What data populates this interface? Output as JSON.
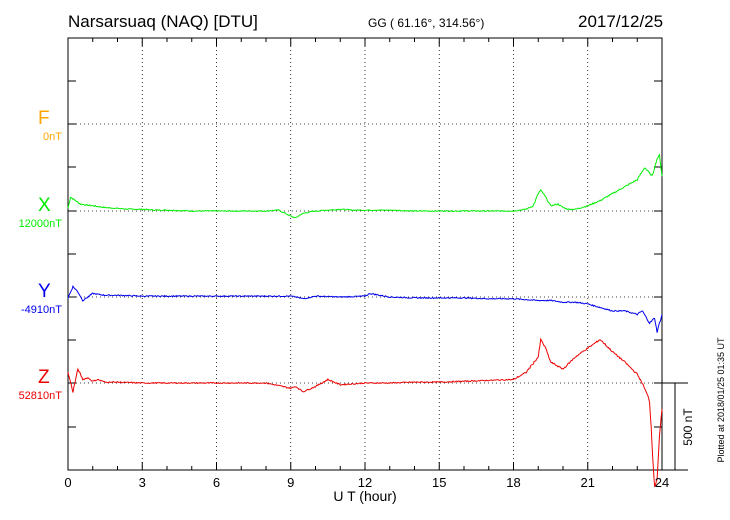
{
  "header": {
    "station": "Narsarsuaq (NAQ)  [DTU]",
    "coords": "GG ( 61.16°, 314.56°)",
    "date": "2017/12/25"
  },
  "footer": {
    "plotted": "Plotted at 2018/01/25 01:35 UT"
  },
  "chart_data": {
    "type": "line",
    "xlabel": "U T (hour)",
    "xlim": [
      0,
      24
    ],
    "xticks": [
      "0",
      "3",
      "6",
      "9",
      "12",
      "15",
      "18",
      "21",
      "24"
    ],
    "grid": true,
    "scale_bar": "500 nT",
    "series": [
      {
        "name": "F",
        "baseline": "0nT",
        "color": "#ffa500",
        "x": [],
        "values": []
      },
      {
        "name": "X",
        "baseline": "12000nT",
        "color": "#00ee00",
        "x": [
          0,
          0.1,
          0.3,
          0.5,
          0.7,
          1,
          1.5,
          2,
          2.5,
          3,
          3.5,
          4,
          5,
          6,
          7,
          8,
          8.5,
          8.8,
          9,
          9.2,
          9.4,
          9.6,
          10,
          10.5,
          11,
          11.5,
          12,
          12.5,
          13,
          14,
          15,
          16,
          17,
          18,
          18.5,
          18.8,
          19,
          19.1,
          19.3,
          19.5,
          19.8,
          20,
          20.2,
          20.5,
          21,
          21.5,
          22,
          22.5,
          23,
          23.3,
          23.6,
          23.8,
          23.9,
          24
        ],
        "values": [
          15,
          80,
          60,
          40,
          35,
          30,
          20,
          15,
          10,
          10,
          5,
          5,
          0,
          0,
          0,
          0,
          5,
          -15,
          -30,
          -40,
          -20,
          -10,
          0,
          5,
          10,
          5,
          5,
          5,
          5,
          0,
          0,
          0,
          0,
          0,
          10,
          30,
          100,
          120,
          80,
          30,
          40,
          20,
          10,
          10,
          30,
          60,
          100,
          140,
          180,
          250,
          200,
          300,
          320,
          200
        ]
      },
      {
        "name": "Y",
        "baseline": "-4910nT",
        "color": "#0000ee",
        "x": [
          0,
          0.2,
          0.4,
          0.6,
          1,
          1.5,
          2,
          3,
          4,
          5,
          6,
          7,
          8,
          9,
          9.2,
          9.5,
          10,
          11,
          12,
          12.2,
          13,
          14,
          15,
          16,
          17,
          18,
          19,
          19.5,
          20,
          20.5,
          21,
          21.5,
          22,
          22.5,
          23,
          23.2,
          23.5,
          23.7,
          23.8,
          24
        ],
        "values": [
          -5,
          60,
          30,
          -20,
          20,
          10,
          10,
          5,
          5,
          5,
          5,
          5,
          5,
          5,
          0,
          -10,
          5,
          0,
          5,
          20,
          0,
          -5,
          -5,
          -5,
          -10,
          -10,
          -20,
          -20,
          -30,
          -30,
          -40,
          -60,
          -80,
          -80,
          -100,
          -80,
          -150,
          -120,
          -200,
          -100
        ]
      },
      {
        "name": "Z",
        "baseline": "52810nT",
        "color": "#ee0000",
        "x": [
          0,
          0.2,
          0.4,
          0.6,
          0.8,
          1,
          1.2,
          1.5,
          2,
          3,
          4,
          5,
          6,
          7,
          8,
          9,
          9.2,
          9.5,
          10,
          10.5,
          11,
          12,
          13,
          14,
          15,
          16,
          17,
          18,
          18.5,
          19,
          19.1,
          19.3,
          19.5,
          20,
          20.5,
          21,
          21.5,
          22,
          22.5,
          23,
          23.2,
          23.5,
          23.7,
          23.8,
          23.9,
          24
        ],
        "values": [
          60,
          -50,
          80,
          20,
          30,
          10,
          20,
          5,
          5,
          0,
          0,
          0,
          0,
          0,
          0,
          -30,
          -20,
          -50,
          -20,
          20,
          -10,
          0,
          0,
          5,
          5,
          10,
          15,
          20,
          60,
          150,
          250,
          200,
          120,
          80,
          150,
          200,
          250,
          180,
          120,
          50,
          0,
          -100,
          -600,
          -550,
          -300,
          -150
        ]
      }
    ]
  }
}
